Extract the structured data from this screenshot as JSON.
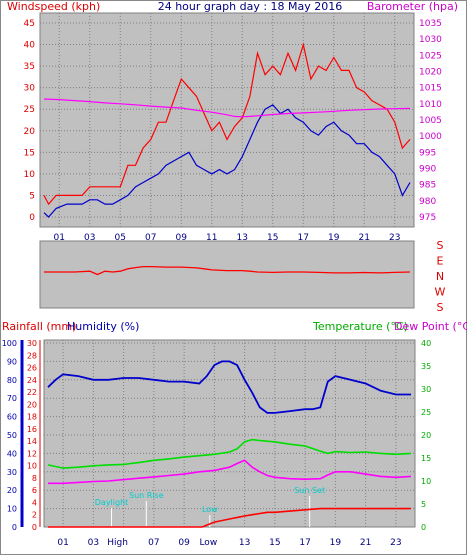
{
  "header": {
    "left_label": "Windspeed (kph)",
    "center_title": "24 hour graph day : 18 May 2016",
    "right_label": "Barometer (hpa)"
  },
  "colors": {
    "red": "#ff0000",
    "blue": "#0000cc",
    "magenta": "#ff00ff",
    "green": "#00dd00",
    "cyan": "#00cccc",
    "plot_bg": "#c0c0c0",
    "frame": "#808080"
  },
  "x_ticks": [
    "01",
    "03",
    "05",
    "07",
    "09",
    "11",
    "13",
    "15",
    "17",
    "19",
    "21",
    "23"
  ],
  "bottom_x_ticks": [
    "01",
    "03",
    "",
    "07",
    "09",
    "",
    "13",
    "15",
    "17",
    "19",
    "21",
    "23"
  ],
  "bottom_x_overlays": [
    "High",
    "Low"
  ],
  "chart_data": [
    {
      "type": "line",
      "name": "wind-barometer",
      "x_range": [
        0,
        24
      ],
      "y_left": {
        "label": "Windspeed (kph)",
        "ticks": [
          0,
          5,
          10,
          15,
          20,
          25,
          30,
          35,
          40,
          45
        ],
        "range": [
          0,
          45
        ]
      },
      "y_right": {
        "label": "Barometer (hpa)",
        "ticks": [
          975,
          980,
          985,
          990,
          995,
          1000,
          1005,
          1010,
          1015,
          1020,
          1025,
          1030,
          1035
        ],
        "range": [
          975,
          1035
        ]
      },
      "series": [
        {
          "color": "#ff0000",
          "x": [
            0,
            0.3,
            0.8,
            1.5,
            2,
            2.5,
            3,
            3.5,
            4,
            4.5,
            5,
            5.5,
            6,
            6.5,
            7,
            7.5,
            8,
            8.5,
            9,
            9.5,
            10,
            10.5,
            11,
            11.5,
            12,
            12.5,
            13,
            13.5,
            14,
            14.5,
            15,
            15.5,
            16,
            16.5,
            17,
            17.5,
            18,
            18.5,
            19,
            19.5,
            20,
            20.5,
            21,
            21.5,
            22,
            22.5,
            23,
            23.5,
            24
          ],
          "y": [
            5,
            3,
            5,
            5,
            5,
            5,
            7,
            7,
            7,
            7,
            7,
            12,
            12,
            16,
            18,
            22,
            22,
            27,
            32,
            30,
            28,
            24,
            20,
            22,
            18,
            21,
            23,
            28,
            38,
            33,
            35,
            33,
            38,
            34,
            40,
            32,
            35,
            34,
            37,
            34,
            34,
            30,
            29,
            27,
            26,
            25,
            22,
            16,
            18
          ]
        },
        {
          "color": "#0000cc",
          "x": [
            0,
            0.3,
            0.8,
            1.5,
            2,
            2.5,
            3,
            3.5,
            4,
            4.5,
            5,
            5.5,
            6,
            6.5,
            7,
            7.5,
            8,
            8.5,
            9,
            9.5,
            10,
            10.5,
            11,
            11.5,
            12,
            12.5,
            13,
            13.5,
            14,
            14.5,
            15,
            15.5,
            16,
            16.5,
            17,
            17.5,
            18,
            18.5,
            19,
            19.5,
            20,
            20.5,
            21,
            21.5,
            22,
            22.5,
            23,
            23.5,
            24
          ],
          "y": [
            1,
            0,
            2,
            3,
            3,
            3,
            4,
            4,
            3,
            3,
            4,
            5,
            7,
            8,
            9,
            10,
            12,
            13,
            14,
            15,
            12,
            11,
            10,
            11,
            10,
            11,
            14,
            18,
            22,
            25,
            26,
            24,
            25,
            23,
            22,
            20,
            19,
            21,
            22,
            20,
            19,
            17,
            17,
            15,
            14,
            12,
            10,
            5,
            8
          ]
        },
        {
          "color": "#ff00ff",
          "x": [
            0,
            1,
            2,
            3,
            4,
            5,
            6,
            7,
            8,
            9,
            10,
            11,
            12,
            12.5,
            13,
            13.5,
            14,
            15,
            16,
            17,
            18,
            19,
            20,
            21,
            22,
            23,
            24
          ],
          "y": [
            1011.5,
            1011.3,
            1011,
            1010.7,
            1010.3,
            1010,
            1009.7,
            1009.3,
            1009,
            1008.7,
            1008,
            1007.4,
            1006.6,
            1006.1,
            1006,
            1006.1,
            1006.3,
            1006.7,
            1007,
            1007.2,
            1007.4,
            1007.7,
            1008,
            1008.2,
            1008.4,
            1008.5,
            1008.6
          ]
        }
      ]
    },
    {
      "type": "line",
      "name": "wind-direction",
      "x_range": [
        0,
        24
      ],
      "y_labels": [
        "S",
        "E",
        "N",
        "W",
        "S"
      ],
      "series": [
        {
          "color": "#ff0000",
          "x": [
            0,
            1,
            2,
            3,
            3.5,
            4,
            4.5,
            5,
            5.5,
            6,
            6.5,
            7,
            8,
            9,
            10,
            10.5,
            11,
            12,
            13,
            13.5,
            14,
            15,
            16,
            17,
            18,
            19,
            20,
            21,
            22,
            23,
            24
          ],
          "y": [
            195,
            195,
            195,
            200,
            180,
            200,
            195,
            200,
            215,
            222,
            228,
            228,
            225,
            225,
            220,
            215,
            208,
            204,
            204,
            200,
            195,
            193,
            195,
            195,
            193,
            190,
            190,
            192,
            190,
            193,
            195
          ]
        }
      ]
    },
    {
      "type": "line",
      "name": "rain-humidity-temperature",
      "x_range": [
        0,
        24
      ],
      "y_rain": {
        "label": "Rainfall (mm)",
        "ticks": [
          0,
          2,
          4,
          6,
          8,
          10,
          12,
          14,
          16,
          18,
          20,
          22,
          24,
          26,
          28,
          30
        ],
        "range": [
          0,
          30
        ]
      },
      "y_humidity": {
        "label": "Humidity (%)",
        "ticks": [
          0,
          10,
          20,
          30,
          40,
          50,
          60,
          70,
          80,
          90,
          100
        ],
        "range": [
          0,
          100
        ]
      },
      "y_temperature": {
        "label": "Temperature (°C)",
        "ticks": [
          0,
          5,
          10,
          15,
          20,
          25,
          30,
          35,
          40
        ],
        "range": [
          0,
          40
        ]
      },
      "y_dewpoint_label": "Dew Point (°C)",
      "annotations": [
        {
          "text": "Sun Rise",
          "x": 6.5
        },
        {
          "text": "Sun Set",
          "x": 17.3
        },
        {
          "text": "Daylight",
          "x": 4.2
        },
        {
          "text": "Low",
          "x": 10.7
        }
      ],
      "series": [
        {
          "color": "#0000cc",
          "axis": "humidity",
          "x": [
            0,
            0.5,
            1,
            2,
            3,
            4,
            5,
            6,
            7,
            8,
            9,
            10,
            10.5,
            11,
            11.5,
            12,
            12.5,
            13,
            13.5,
            14,
            14.5,
            15,
            16,
            17,
            17.5,
            18,
            18.5,
            19,
            20,
            21,
            22,
            23,
            24
          ],
          "y": [
            76,
            80,
            83,
            82,
            80,
            80,
            81,
            81,
            80,
            79,
            79,
            78,
            82,
            88,
            90,
            90,
            88,
            80,
            73,
            65,
            62,
            62,
            63,
            64,
            64,
            65,
            79,
            82,
            80,
            78,
            74,
            72,
            72
          ]
        },
        {
          "color": "#00dd00",
          "axis": "temperature",
          "x": [
            0,
            1,
            2,
            3,
            4,
            5,
            6,
            7,
            8,
            9,
            10,
            11,
            12,
            12.5,
            13,
            13.5,
            14,
            15,
            16,
            17,
            18,
            18.5,
            19,
            20,
            21,
            22,
            23,
            24
          ],
          "y": [
            13.5,
            12.8,
            13,
            13.3,
            13.5,
            13.6,
            14,
            14.5,
            14.8,
            15.2,
            15.5,
            15.8,
            16.3,
            17,
            18.5,
            19,
            18.8,
            18.5,
            18,
            17.6,
            16.5,
            16,
            16.4,
            16.2,
            16.3,
            16,
            15.8,
            16
          ]
        },
        {
          "color": "#ff00ff",
          "axis": "temperature",
          "x": [
            0,
            1,
            2,
            3,
            4,
            5,
            6,
            7,
            8,
            9,
            10,
            11,
            12,
            12.5,
            13,
            13.5,
            14,
            14.5,
            15,
            16,
            17,
            18,
            18.5,
            19,
            20,
            21,
            22,
            23,
            24
          ],
          "y": [
            9.5,
            9.5,
            9.7,
            9.9,
            10,
            10.3,
            10.6,
            10.9,
            11.2,
            11.5,
            12,
            12.3,
            13,
            13.8,
            14.5,
            13,
            12,
            11.2,
            10.8,
            10.5,
            10.4,
            10.5,
            11.3,
            12,
            12,
            11.5,
            11,
            10.8,
            11
          ]
        },
        {
          "color": "#ff0000",
          "axis": "rain",
          "x": [
            0,
            10.2,
            10.6,
            11,
            11.4,
            11.8,
            12.2,
            12.6,
            13,
            13.5,
            14,
            14.5,
            15,
            16,
            17,
            18,
            18.5,
            24
          ],
          "y": [
            0,
            0,
            0.4,
            0.8,
            1,
            1.2,
            1.4,
            1.6,
            1.8,
            2,
            2.2,
            2.4,
            2.4,
            2.6,
            2.8,
            3,
            3,
            3
          ]
        }
      ]
    }
  ]
}
